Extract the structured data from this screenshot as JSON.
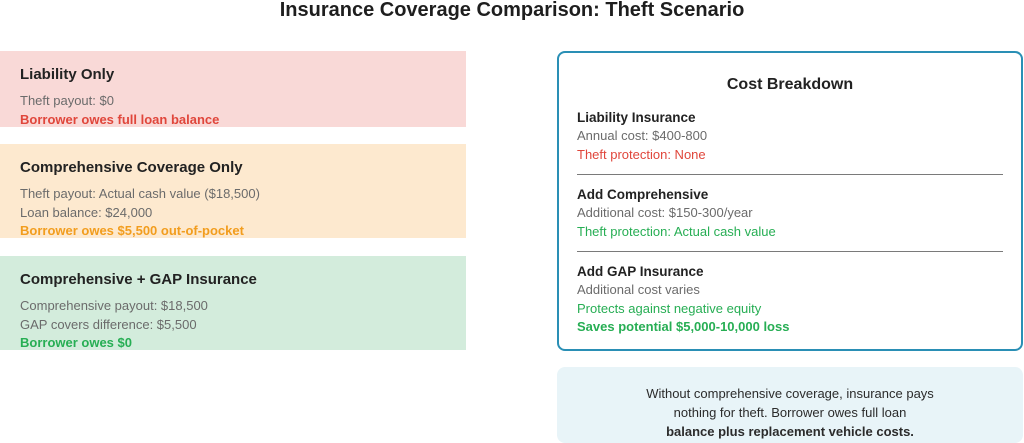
{
  "title": "Insurance Coverage Comparison: Theft Scenario",
  "scenarios": [
    {
      "heading": "Liability Only",
      "lines": [
        "Theft payout: $0"
      ],
      "result": "Borrower owes full loan balance",
      "color": "#f9d9d7",
      "result_color": "#e0463b"
    },
    {
      "heading": "Comprehensive Coverage Only",
      "lines": [
        "Theft payout: Actual cash value ($18,500)",
        "Loan balance: $24,000"
      ],
      "result": "Borrower owes $5,500 out-of-pocket",
      "color": "#fde9cf",
      "result_color": "#f29d1e"
    },
    {
      "heading": "Comprehensive + GAP Insurance",
      "lines": [
        "Comprehensive payout: $18,500",
        "GAP covers difference: $5,500"
      ],
      "result": "Borrower owes $0",
      "color": "#d3ecdc",
      "result_color": "#27ae54"
    }
  ],
  "breakdown": {
    "title": "Cost Breakdown",
    "border_color": "#2a8fb5",
    "sections": [
      {
        "heading": "Liability Insurance",
        "cost": "Annual cost: $400-800",
        "protection": "Theft protection: None"
      },
      {
        "heading": "Add Comprehensive",
        "cost": "Additional cost: $150-300/year",
        "protection": "Theft protection: Actual cash value"
      },
      {
        "heading": "Add GAP Insurance",
        "cost": "Additional cost varies",
        "protection": "Protects against negative equity",
        "savings": "Saves potential $5,000-10,000 loss"
      }
    ]
  },
  "note": {
    "line1": "Without comprehensive coverage, insurance pays",
    "line2": "nothing for theft. Borrower owes full loan",
    "line3": "balance plus replacement vehicle costs."
  }
}
